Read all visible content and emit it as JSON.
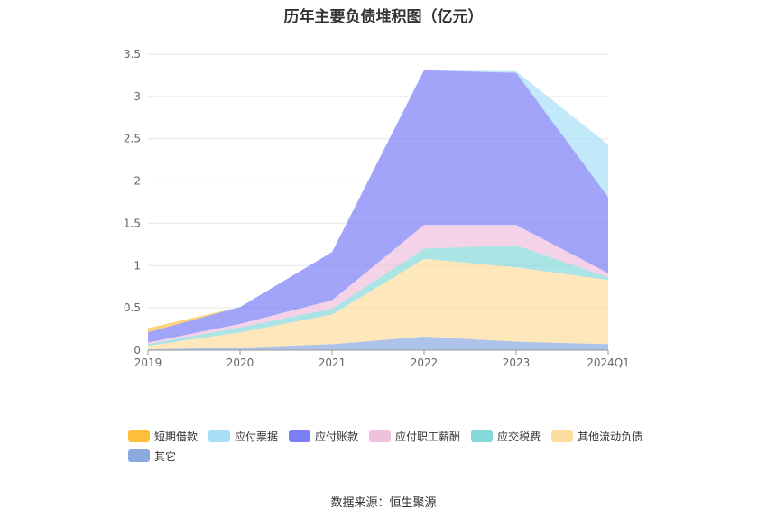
{
  "title": "历年主要负债堆积图（亿元）",
  "source_text": "数据来源：恒生聚源",
  "chart_data": {
    "type": "area",
    "stacked": true,
    "categories": [
      "2019",
      "2020",
      "2021",
      "2022",
      "2023",
      "2024Q1"
    ],
    "ylim": [
      0,
      3.5
    ],
    "yticks": [
      "0",
      "0.5",
      "1",
      "1.5",
      "2",
      "2.5",
      "3",
      "3.5"
    ],
    "grid": true,
    "legend_position": "bottom",
    "series": [
      {
        "name": "短期借款",
        "color": "#FDBF3B",
        "values": [
          0.05,
          0.0,
          0.0,
          0.0,
          0.0,
          0.0
        ]
      },
      {
        "name": "应付票据",
        "color": "#A8DFF8",
        "values": [
          0.0,
          0.0,
          0.0,
          0.0,
          0.02,
          0.62
        ]
      },
      {
        "name": "应付账款",
        "color": "#7B7EF6",
        "values": [
          0.12,
          0.2,
          0.57,
          1.83,
          1.8,
          0.9
        ]
      },
      {
        "name": "应付职工薪酬",
        "color": "#EFBFDE",
        "values": [
          0.02,
          0.04,
          0.1,
          0.28,
          0.24,
          0.05
        ]
      },
      {
        "name": "应交税费",
        "color": "#86D8D8",
        "values": [
          0.02,
          0.06,
          0.07,
          0.12,
          0.26,
          0.03
        ]
      },
      {
        "name": "其他流动负债",
        "color": "#FCDD9E",
        "values": [
          0.04,
          0.18,
          0.35,
          0.92,
          0.88,
          0.76
        ]
      },
      {
        "name": "其它",
        "color": "#8AAADF",
        "values": [
          0.01,
          0.03,
          0.07,
          0.16,
          0.1,
          0.07
        ]
      }
    ]
  }
}
